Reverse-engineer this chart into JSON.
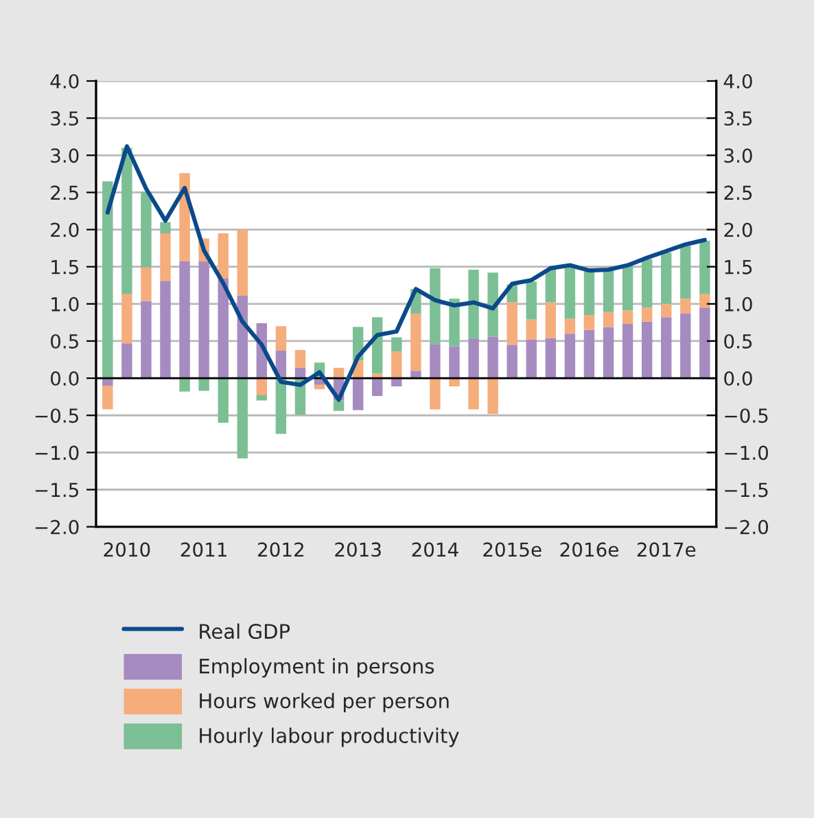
{
  "chart_data": {
    "type": "bar",
    "stacked": true,
    "categories": [
      null,
      "2010",
      null,
      null,
      null,
      "2011",
      null,
      null,
      null,
      "2012",
      null,
      null,
      null,
      "2013",
      null,
      null,
      null,
      "2014",
      null,
      null,
      null,
      "2015e",
      null,
      null,
      null,
      "2016e",
      null,
      null,
      null,
      "2017e",
      null,
      null
    ],
    "series": [
      {
        "name": "Real GDP",
        "type": "line",
        "color": "#0b4a8a",
        "values": [
          2.23,
          3.12,
          2.55,
          2.12,
          2.56,
          1.72,
          1.28,
          0.76,
          0.45,
          -0.05,
          -0.09,
          0.08,
          -0.29,
          0.29,
          0.58,
          0.63,
          1.2,
          1.05,
          0.98,
          1.02,
          0.94,
          1.27,
          1.32,
          1.48,
          1.52,
          1.45,
          1.46,
          1.52,
          1.62,
          1.71,
          1.8,
          1.86
        ]
      },
      {
        "name": "Employment in persons",
        "color": "#a68bc1",
        "values": [
          -0.1,
          0.47,
          1.04,
          1.31,
          1.57,
          1.57,
          1.34,
          1.11,
          0.74,
          0.37,
          0.14,
          -0.09,
          -0.3,
          -0.43,
          -0.24,
          -0.11,
          0.1,
          0.46,
          0.43,
          0.54,
          0.56,
          0.45,
          0.52,
          0.54,
          0.6,
          0.65,
          0.69,
          0.73,
          0.76,
          0.82,
          0.87,
          0.95
        ]
      },
      {
        "name": "Hours worked per person",
        "color": "#f5ad7c",
        "values": [
          -0.32,
          0.66,
          0.45,
          0.64,
          1.19,
          0.31,
          0.61,
          0.89,
          -0.23,
          0.33,
          0.24,
          -0.06,
          0.14,
          0.24,
          0.06,
          0.36,
          0.77,
          -0.42,
          -0.11,
          -0.42,
          -0.48,
          0.57,
          0.27,
          0.48,
          0.2,
          0.2,
          0.2,
          0.18,
          0.19,
          0.18,
          0.2,
          0.18
        ]
      },
      {
        "name": "Hourly labour productivity",
        "color": "#7dbf95",
        "values": [
          2.65,
          1.97,
          1.02,
          0.15,
          -0.18,
          -0.17,
          -0.6,
          -1.08,
          -0.07,
          -0.75,
          -0.49,
          0.21,
          -0.14,
          0.45,
          0.76,
          0.19,
          0.33,
          1.02,
          0.64,
          0.92,
          0.86,
          0.24,
          0.51,
          0.44,
          0.71,
          0.61,
          0.57,
          0.6,
          0.65,
          0.69,
          0.71,
          0.72
        ]
      }
    ],
    "ylim": [
      -2.0,
      4.0
    ],
    "yticks": [
      {
        "value": -2.0,
        "label": "−2.0"
      },
      {
        "value": -1.5,
        "label": "−1.5"
      },
      {
        "value": -1.0,
        "label": "−1.0"
      },
      {
        "value": -0.5,
        "label": "−0.5"
      },
      {
        "value": 0.0,
        "label": "0.0"
      },
      {
        "value": 0.5,
        "label": "0.5"
      },
      {
        "value": 1.0,
        "label": "1.0"
      },
      {
        "value": 1.5,
        "label": "1.5"
      },
      {
        "value": 2.0,
        "label": "2.0"
      },
      {
        "value": 2.5,
        "label": "2.5"
      },
      {
        "value": 3.0,
        "label": "3.0"
      },
      {
        "value": 3.5,
        "label": "3.5"
      },
      {
        "value": 4.0,
        "label": "4.0"
      }
    ],
    "y2lim": [
      -2.0,
      4.0
    ],
    "y2ticks": [
      {
        "value": -2.0,
        "label": "−2.0"
      },
      {
        "value": -1.5,
        "label": "−1.5"
      },
      {
        "value": -1.0,
        "label": "−1.0"
      },
      {
        "value": -0.5,
        "label": "−0.5"
      },
      {
        "value": 0.0,
        "label": "0.0"
      },
      {
        "value": 0.5,
        "label": "0.5"
      },
      {
        "value": 1.0,
        "label": "1.0"
      },
      {
        "value": 1.5,
        "label": "1.5"
      },
      {
        "value": 2.0,
        "label": "2.0"
      },
      {
        "value": 2.5,
        "label": "2.5"
      },
      {
        "value": 3.0,
        "label": "3.0"
      },
      {
        "value": 3.5,
        "label": "3.5"
      },
      {
        "value": 4.0,
        "label": "4.0"
      }
    ],
    "grid": true,
    "legend": "bottom left",
    "ref_lines": [
      {
        "axis": "y",
        "value": 0,
        "color": "#000000"
      }
    ]
  }
}
